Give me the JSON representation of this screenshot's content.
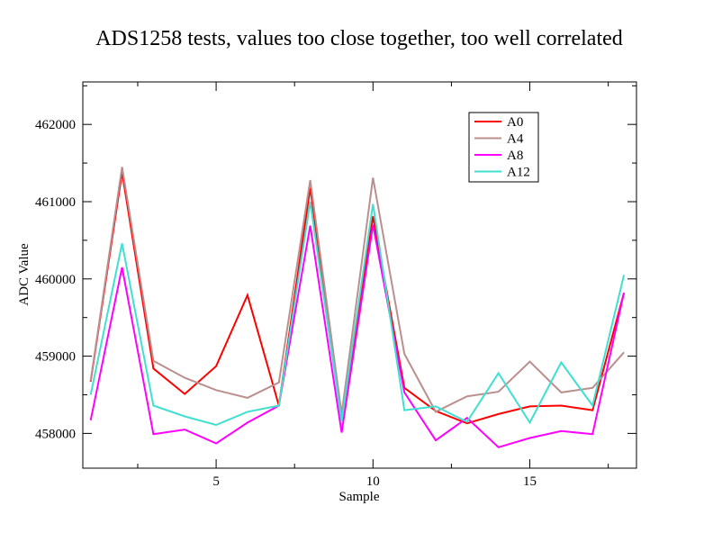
{
  "chart_data": {
    "type": "line",
    "title": "ADS1258 tests, values too close together, too well correlated",
    "xlabel": "Sample",
    "ylabel": "ADC Value",
    "xlim": [
      0.75,
      18.4
    ],
    "ylim": [
      457550,
      462550
    ],
    "x_ticks": [
      5,
      10,
      15
    ],
    "y_ticks": [
      458000,
      459000,
      460000,
      461000,
      462000
    ],
    "grid": false,
    "legend_position": "top-right",
    "x": [
      1,
      2,
      3,
      4,
      5,
      6,
      7,
      8,
      9,
      10,
      11,
      12,
      13,
      14,
      15,
      16,
      17,
      18
    ],
    "series": [
      {
        "name": "A0",
        "color": "#ff0000",
        "values": [
          458670,
          461380,
          458840,
          458510,
          458870,
          459790,
          458360,
          461180,
          458170,
          460810,
          458590,
          458290,
          458130,
          458250,
          458350,
          458360,
          458300,
          459820
        ]
      },
      {
        "name": "A4",
        "color": "#bc8f8f",
        "values": [
          458680,
          461450,
          458940,
          458720,
          458560,
          458460,
          458660,
          461280,
          458250,
          461310,
          459030,
          458280,
          458480,
          458540,
          458930,
          458530,
          458590,
          459050
        ]
      },
      {
        "name": "A8",
        "color": "#ff00ff",
        "values": [
          458170,
          460150,
          457990,
          458050,
          457870,
          458140,
          458360,
          460690,
          458010,
          460700,
          458530,
          457910,
          458200,
          457820,
          457940,
          458030,
          457990,
          459820
        ]
      },
      {
        "name": "A12",
        "color": "#40e0d0",
        "values": [
          458500,
          460460,
          458360,
          458220,
          458110,
          458280,
          458360,
          461000,
          458160,
          460970,
          458300,
          458350,
          458150,
          458780,
          458140,
          458920,
          458360,
          460050
        ]
      }
    ]
  }
}
